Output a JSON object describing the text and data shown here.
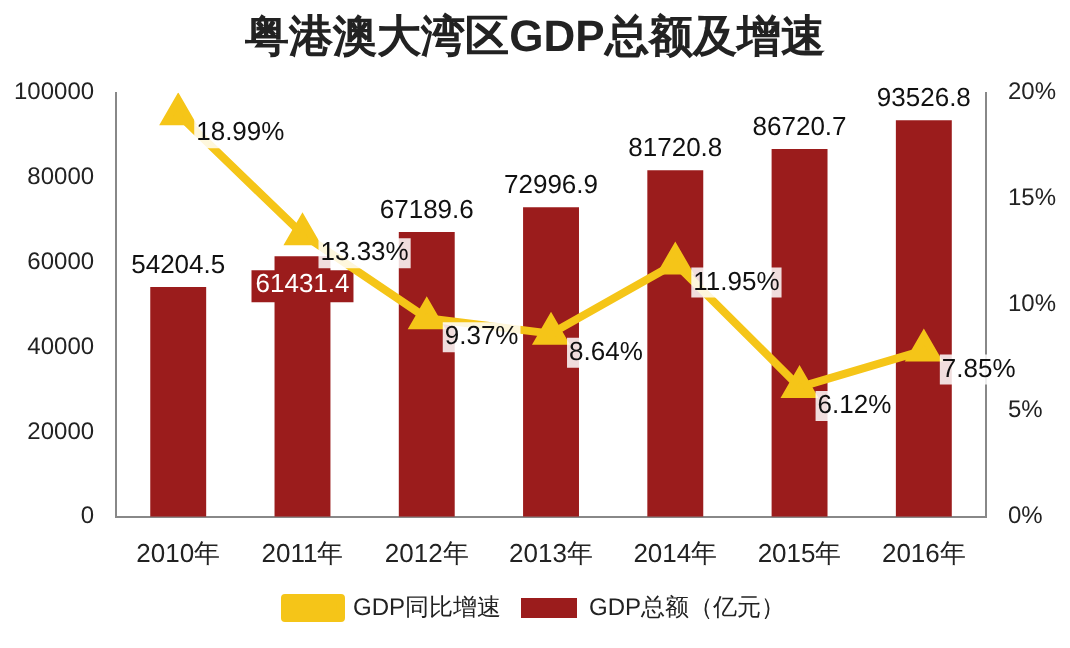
{
  "chart_data": {
    "type": "bar",
    "title": "粤港澳大湾区GDP总额及增速",
    "categories": [
      "2010年",
      "2011年",
      "2012年",
      "2013年",
      "2014年",
      "2015年",
      "2016年"
    ],
    "series": [
      {
        "name": "GDP总额（亿元）",
        "color": "#9b1c1c",
        "values": [
          54204.5,
          61431.4,
          67189.6,
          72996.9,
          81720.8,
          86720.7,
          93526.8
        ],
        "value_labels": [
          "54204.5",
          "61431.4",
          "67189.6",
          "72996.9",
          "81720.8",
          "86720.7",
          "93526.8"
        ]
      },
      {
        "name": "GDP同比增速",
        "type": "line",
        "axis": "y2",
        "color": "#f5c518",
        "marker": "triangle",
        "values": [
          18.99,
          13.33,
          9.37,
          8.64,
          11.95,
          6.12,
          7.85
        ],
        "value_labels": [
          "18.99%",
          "13.33%",
          "9.37%",
          "8.64%",
          "11.95%",
          "6.12%",
          "7.85%"
        ]
      }
    ],
    "ylim": [
      0,
      100000
    ],
    "yticks": [
      0,
      20000,
      40000,
      60000,
      80000,
      100000
    ],
    "y2lim": [
      0,
      20
    ],
    "y2ticks": [
      {
        "value": 0,
        "label": "0%"
      },
      {
        "value": 5,
        "label": "5%"
      },
      {
        "value": 10,
        "label": "10%"
      },
      {
        "value": 15,
        "label": "15%"
      },
      {
        "value": 20,
        "label": "20%"
      }
    ],
    "grid": false,
    "legend": "bottom"
  }
}
